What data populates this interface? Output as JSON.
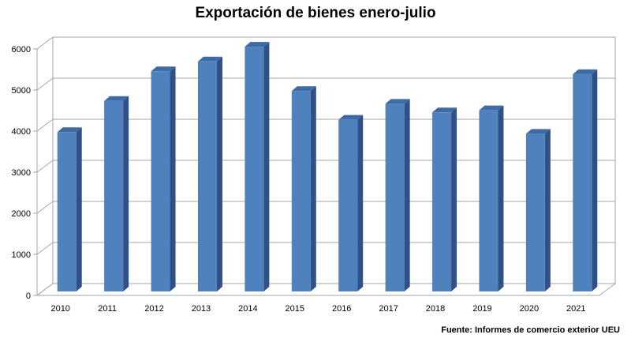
{
  "chart_data": {
    "type": "bar",
    "title": "Exportación de bienes enero-julio",
    "xlabel": "",
    "ylabel": "",
    "categories": [
      "2010",
      "2011",
      "2012",
      "2013",
      "2014",
      "2015",
      "2016",
      "2017",
      "2018",
      "2019",
      "2020",
      "2021"
    ],
    "values": [
      3880,
      4640,
      5360,
      5600,
      5960,
      4880,
      4180,
      4570,
      4360,
      4410,
      3840,
      5290
    ],
    "ylim": [
      0,
      6000
    ],
    "yticks": [
      "0",
      "1000",
      "2000",
      "3000",
      "4000",
      "5000",
      "6000"
    ],
    "grid": true,
    "legend": "none",
    "bar_color": "#4f81bd",
    "bar_side_color": "#2f5188",
    "bar_top_color": "#3e6aa6"
  },
  "source": "Fuente: Informes de comercio exterior UEU"
}
